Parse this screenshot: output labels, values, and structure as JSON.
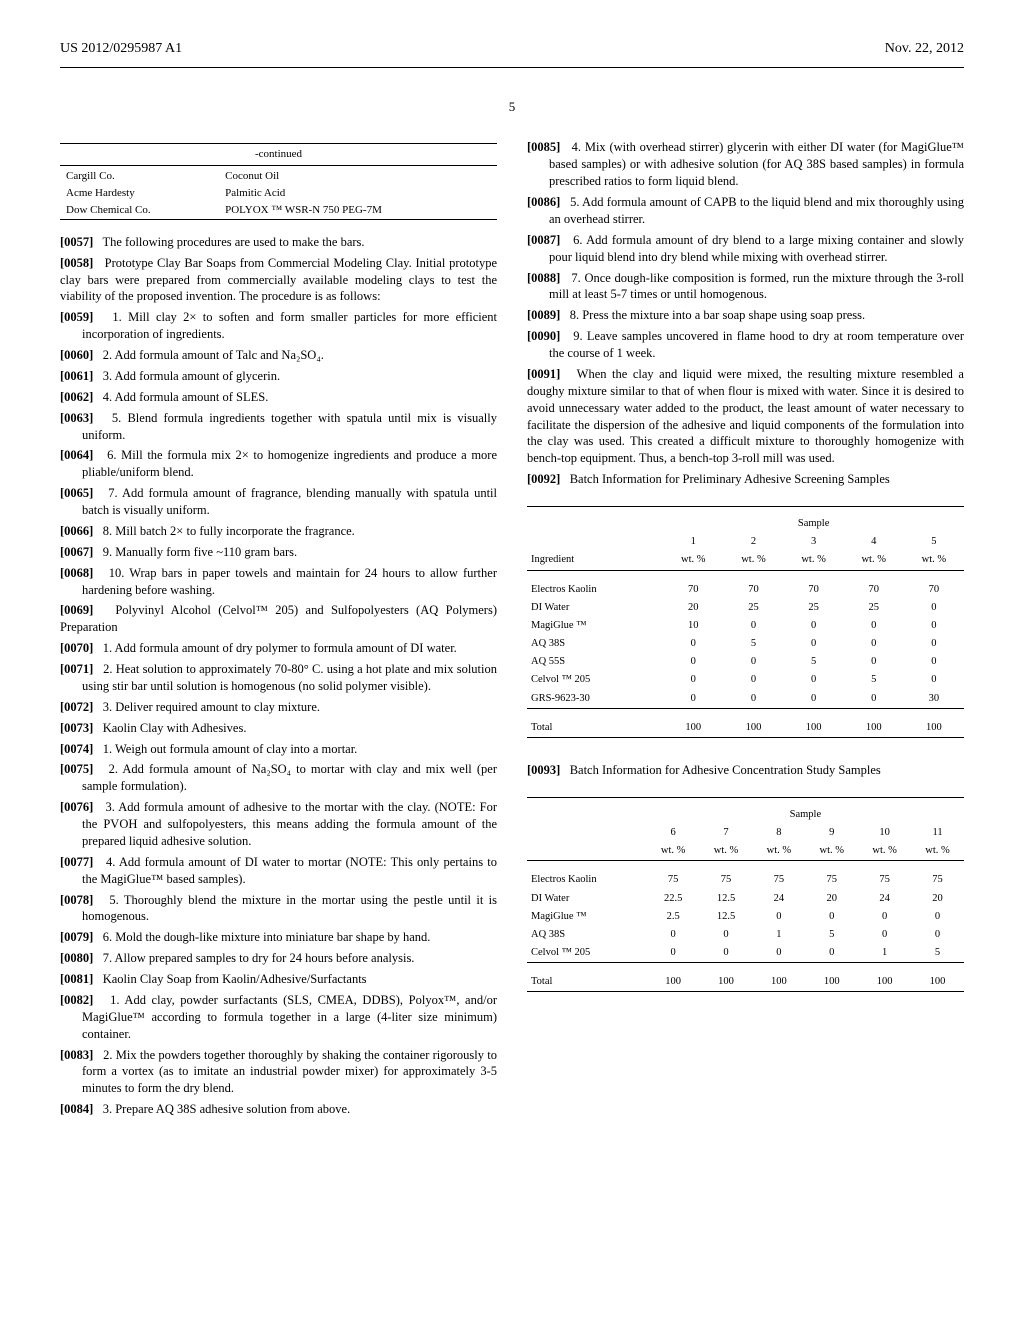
{
  "header": {
    "left": "US 2012/0295987 A1",
    "right": "Nov. 22, 2012"
  },
  "page_number": "5",
  "cont_table": {
    "title": "-continued",
    "rows": [
      [
        "Cargill Co.",
        "Coconut Oil"
      ],
      [
        "Acme Hardesty",
        "Palmitic Acid"
      ],
      [
        "Dow Chemical Co.",
        "POLYOX ™ WSR-N 750 PEG-7M"
      ]
    ]
  },
  "left_paras": [
    {
      "n": "[0057]",
      "t": "The following procedures are used to make the bars.",
      "cls": ""
    },
    {
      "n": "[0058]",
      "t": "Prototype Clay Bar Soaps from Commercial Modeling Clay. Initial prototype clay bars were prepared from commercially available modeling clays to test the viability of the proposed invention. The procedure is as follows:",
      "cls": ""
    },
    {
      "n": "[0059]",
      "t": "1. Mill clay 2× to soften and form smaller particles for more efficient incorporation of ingredients.",
      "cls": "indent"
    },
    {
      "n": "[0060]",
      "t": "2. Add formula amount of Talc and Na₂SO₄.",
      "cls": "indent"
    },
    {
      "n": "[0061]",
      "t": "3. Add formula amount of glycerin.",
      "cls": "indent"
    },
    {
      "n": "[0062]",
      "t": "4. Add formula amount of SLES.",
      "cls": "indent"
    },
    {
      "n": "[0063]",
      "t": "5. Blend formula ingredients together with spatula until mix is visually uniform.",
      "cls": "indent"
    },
    {
      "n": "[0064]",
      "t": "6. Mill the formula mix 2× to homogenize ingredients and produce a more pliable/uniform blend.",
      "cls": "indent"
    },
    {
      "n": "[0065]",
      "t": "7. Add formula amount of fragrance, blending manually with spatula until batch is visually uniform.",
      "cls": "indent"
    },
    {
      "n": "[0066]",
      "t": "8. Mill batch 2× to fully incorporate the fragrance.",
      "cls": "indent"
    },
    {
      "n": "[0067]",
      "t": "9. Manually form five ~110 gram bars.",
      "cls": "indent"
    },
    {
      "n": "[0068]",
      "t": "10. Wrap bars in paper towels and maintain for 24 hours to allow further hardening before washing.",
      "cls": "indent"
    },
    {
      "n": "[0069]",
      "t": "Polyvinyl Alcohol (Celvol™ 205) and Sulfopolyesters (AQ Polymers) Preparation",
      "cls": ""
    },
    {
      "n": "[0070]",
      "t": "1. Add formula amount of dry polymer to formula amount of DI water.",
      "cls": "indent"
    },
    {
      "n": "[0071]",
      "t": "2. Heat solution to approximately 70-80° C. using a hot plate and mix solution using stir bar until solution is homogenous (no solid polymer visible).",
      "cls": "indent"
    },
    {
      "n": "[0072]",
      "t": "3. Deliver required amount to clay mixture.",
      "cls": "indent"
    },
    {
      "n": "[0073]",
      "t": "Kaolin Clay with Adhesives.",
      "cls": ""
    },
    {
      "n": "[0074]",
      "t": "1. Weigh out formula amount of clay into a mortar.",
      "cls": "indent"
    },
    {
      "n": "[0075]",
      "t": "2. Add formula amount of Na₂SO₄ to mortar with clay and mix well (per sample formulation).",
      "cls": "indent"
    },
    {
      "n": "[0076]",
      "t": "3. Add formula amount of adhesive to the mortar with the clay. (NOTE: For the PVOH and sulfopolyesters, this means adding the formula amount of the prepared liquid adhesive solution.",
      "cls": "indent"
    },
    {
      "n": "[0077]",
      "t": "4. Add formula amount of DI water to mortar (NOTE: This only pertains to the MagiGlue™ based samples).",
      "cls": "indent"
    },
    {
      "n": "[0078]",
      "t": "5. Thoroughly blend the mixture in the mortar using the pestle until it is homogenous.",
      "cls": "indent"
    },
    {
      "n": "[0079]",
      "t": "6. Mold the dough-like mixture into miniature bar shape by hand.",
      "cls": "indent"
    },
    {
      "n": "[0080]",
      "t": "7. Allow prepared samples to dry for 24 hours before analysis.",
      "cls": "indent"
    },
    {
      "n": "[0081]",
      "t": "Kaolin Clay Soap from Kaolin/Adhesive/Surfactants",
      "cls": ""
    },
    {
      "n": "[0082]",
      "t": "1. Add clay, powder surfactants (SLS, CMEA, DDBS), Polyox™, and/or MagiGlue™ according to formula together in a large (4-liter size minimum) container.",
      "cls": "indent"
    },
    {
      "n": "[0083]",
      "t": "2. Mix the powders together thoroughly by shaking the container rigorously to form a vortex (as to imitate an industrial powder mixer) for approximately 3-5 minutes to form the dry blend.",
      "cls": "indent"
    },
    {
      "n": "[0084]",
      "t": "3. Prepare AQ 38S adhesive solution from above.",
      "cls": "indent"
    }
  ],
  "right_paras_top": [
    {
      "n": "[0085]",
      "t": "4. Mix (with overhead stirrer) glycerin with either DI water (for MagiGlue™ based samples) or with adhesive solution (for AQ 38S based samples) in formula prescribed ratios to form liquid blend.",
      "cls": "indent"
    },
    {
      "n": "[0086]",
      "t": "5. Add formula amount of CAPB to the liquid blend and mix thoroughly using an overhead stirrer.",
      "cls": "indent"
    },
    {
      "n": "[0087]",
      "t": "6. Add formula amount of dry blend to a large mixing container and slowly pour liquid blend into dry blend while mixing with overhead stirrer.",
      "cls": "indent"
    },
    {
      "n": "[0088]",
      "t": "7. Once dough-like composition is formed, run the mixture through the 3-roll mill at least 5-7 times or until homogenous.",
      "cls": "indent"
    },
    {
      "n": "[0089]",
      "t": "8. Press the mixture into a bar soap shape using soap press.",
      "cls": "indent"
    },
    {
      "n": "[0090]",
      "t": "9. Leave samples uncovered in flame hood to dry at room temperature over the course of 1 week.",
      "cls": "indent"
    },
    {
      "n": "[0091]",
      "t": "When the clay and liquid were mixed, the resulting mixture resembled a doughy mixture similar to that of when flour is mixed with water. Since it is desired to avoid unnecessary water added to the product, the least amount of water necessary to facilitate the dispersion of the adhesive and liquid components of the formulation into the clay was used. This created a difficult mixture to thoroughly homogenize with bench-top equipment. Thus, a bench-top 3-roll mill was used.",
      "cls": ""
    },
    {
      "n": "[0092]",
      "t": "Batch Information for Preliminary Adhesive Screening Samples",
      "cls": ""
    }
  ],
  "table1": {
    "group_label": "Sample",
    "col_head": "Ingredient",
    "cols": [
      "1",
      "2",
      "3",
      "4",
      "5"
    ],
    "unit": "wt. %",
    "rows": [
      [
        "Electros Kaolin",
        "70",
        "70",
        "70",
        "70",
        "70"
      ],
      [
        "DI Water",
        "20",
        "25",
        "25",
        "25",
        "0"
      ],
      [
        "MagiGlue ™",
        "10",
        "0",
        "0",
        "0",
        "0"
      ],
      [
        "AQ 38S",
        "0",
        "5",
        "0",
        "0",
        "0"
      ],
      [
        "AQ 55S",
        "0",
        "0",
        "5",
        "0",
        "0"
      ],
      [
        "Celvol ™ 205",
        "0",
        "0",
        "0",
        "5",
        "0"
      ],
      [
        "GRS-9623-30",
        "0",
        "0",
        "0",
        "0",
        "30"
      ]
    ],
    "total": [
      "Total",
      "100",
      "100",
      "100",
      "100",
      "100"
    ]
  },
  "right_paras_mid": [
    {
      "n": "[0093]",
      "t": "Batch Information for Adhesive Concentration Study Samples",
      "cls": ""
    }
  ],
  "table2": {
    "group_label": "Sample",
    "cols": [
      "6",
      "7",
      "8",
      "9",
      "10",
      "11"
    ],
    "unit": "wt. %",
    "rows": [
      [
        "Electros Kaolin",
        "75",
        "75",
        "75",
        "75",
        "75",
        "75"
      ],
      [
        "DI Water",
        "22.5",
        "12.5",
        "24",
        "20",
        "24",
        "20"
      ],
      [
        "MagiGlue ™",
        "2.5",
        "12.5",
        "0",
        "0",
        "0",
        "0"
      ],
      [
        "AQ 38S",
        "0",
        "0",
        "1",
        "5",
        "0",
        "0"
      ],
      [
        "Celvol ™ 205",
        "0",
        "0",
        "0",
        "0",
        "1",
        "5"
      ]
    ],
    "total": [
      "Total",
      "100",
      "100",
      "100",
      "100",
      "100",
      "100"
    ]
  }
}
